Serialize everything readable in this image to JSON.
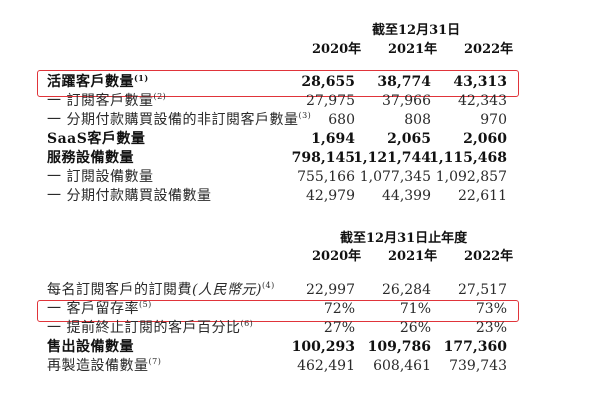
{
  "section1": {
    "header": "截至12月31日",
    "years": [
      "2020年",
      "2021年",
      "2022年"
    ],
    "rows": [
      {
        "label": "活躍客戶數量",
        "note": "(1)",
        "values": [
          "28,655",
          "38,774",
          "43,313"
        ],
        "bold": true,
        "highlighted": true
      },
      {
        "label": "一 訂閱客戶數量",
        "note": "(2)",
        "values": [
          "27,975",
          "37,966",
          "42,343"
        ],
        "bold": false
      },
      {
        "label": "一 分期付款購買設備的非訂閱客戶數量",
        "note": "(3)",
        "values": [
          "680",
          "808",
          "970"
        ],
        "bold": false
      },
      {
        "label": "SaaS客戶數量",
        "note": "",
        "values": [
          "1,694",
          "2,065",
          "2,060"
        ],
        "bold": true
      },
      {
        "label": "服務設備數量",
        "note": "",
        "values": [
          "798,145",
          "1,121,744",
          "1,115,468"
        ],
        "bold": true
      },
      {
        "label": "一 訂閱設備數量",
        "note": "",
        "values": [
          "755,166",
          "1,077,345",
          "1,092,857"
        ],
        "bold": false
      },
      {
        "label": "一 分期付款購買設備數量",
        "note": "",
        "values": [
          "42,979",
          "44,399",
          "22,611"
        ],
        "bold": false
      }
    ]
  },
  "section2": {
    "header": "截至12月31日止年度",
    "years": [
      "2020年",
      "2021年",
      "2022年"
    ],
    "rows": [
      {
        "label": "每名訂閱客戶的訂閱費",
        "italic": "(人民幣元)",
        "note": "(4)",
        "values": [
          "22,997",
          "26,284",
          "27,517"
        ],
        "bold": false
      },
      {
        "label": "一 客戶留存率",
        "note": "(5)",
        "values": [
          "72%",
          "71%",
          "73%"
        ],
        "bold": false,
        "highlighted": true
      },
      {
        "label": "一 提前終止訂閱的客戶百分比",
        "note": "(6)",
        "values": [
          "27%",
          "26%",
          "23%"
        ],
        "bold": false
      },
      {
        "label": "售出設備數量",
        "note": "",
        "values": [
          "100,293",
          "109,786",
          "177,360"
        ],
        "bold": true
      },
      {
        "label": "再製造設備數量",
        "note": "(7)",
        "values": [
          "462,491",
          "608,461",
          "739,743"
        ],
        "bold": false
      }
    ]
  },
  "colors": {
    "highlight_box": "#e0343a",
    "text": "#2a2a2a"
  }
}
